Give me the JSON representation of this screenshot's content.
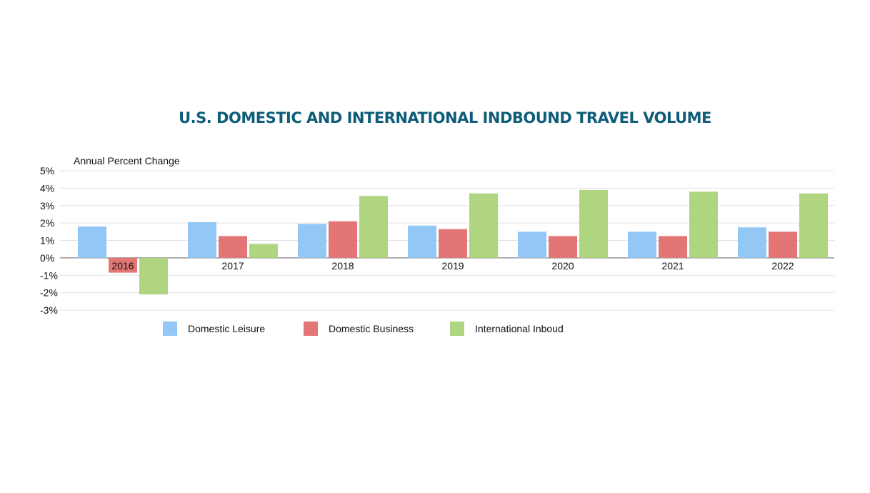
{
  "chart_data": {
    "type": "bar",
    "title": "U.S. DOMESTIC AND INTERNATIONAL INDBOUND TRAVEL VOLUME",
    "ylabel": "Annual Percent Change",
    "xlabel": "",
    "ylim": [
      -3,
      5
    ],
    "yticks": [
      "5%",
      "4%",
      "3%",
      "2%",
      "1%",
      "0%",
      "-1%",
      "-2%",
      "-3%"
    ],
    "grid": true,
    "legend": "bottom",
    "categories": [
      "2016",
      "2017",
      "2018",
      "2019",
      "2020",
      "2021",
      "2022"
    ],
    "series": [
      {
        "name": "Domestic Leisure",
        "color": "#93c8f6",
        "values": [
          1.8,
          2.05,
          1.95,
          1.85,
          1.5,
          1.5,
          1.75
        ]
      },
      {
        "name": "Domestic Business",
        "color": "#e37574",
        "values": [
          -0.85,
          1.25,
          2.1,
          1.65,
          1.25,
          1.25,
          1.5
        ]
      },
      {
        "name": "International Inboud",
        "color": "#afd580",
        "values": [
          -2.1,
          0.8,
          3.55,
          3.7,
          3.9,
          3.8,
          3.7
        ]
      }
    ]
  }
}
